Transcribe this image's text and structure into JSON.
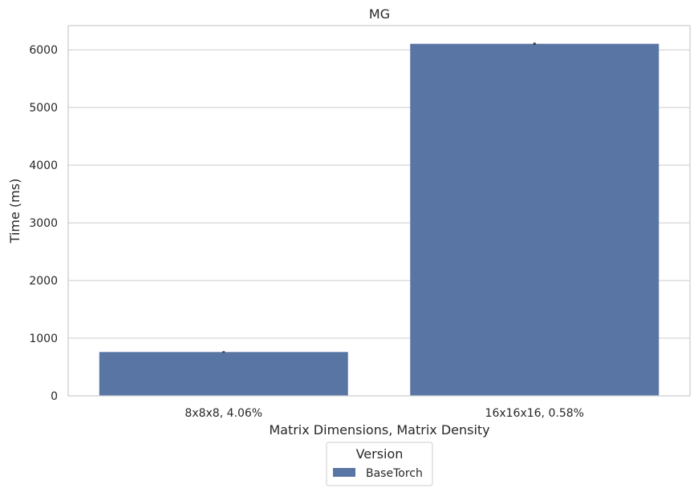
{
  "chart_data": {
    "type": "bar",
    "title": "MG",
    "xlabel": "Matrix Dimensions, Matrix Density",
    "ylabel": "Time (ms)",
    "categories": [
      "8x8x8, 4.06%",
      "16x16x16, 0.58%"
    ],
    "series": [
      {
        "name": "BaseTorch",
        "values": [
          760,
          6105
        ],
        "error": [
          [
            745,
            775
          ],
          [
            6085,
            6125
          ]
        ],
        "color": "#5875a4"
      }
    ],
    "ylim": [
      0,
      6420
    ],
    "yticks": [
      0,
      1000,
      2000,
      3000,
      4000,
      5000,
      6000
    ],
    "grid": true,
    "legend": {
      "title": "Version",
      "placement": "bottom-center"
    }
  }
}
